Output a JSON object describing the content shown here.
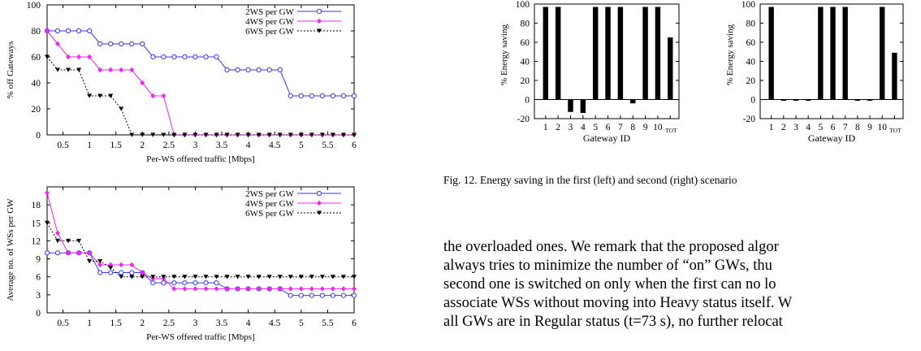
{
  "charts": [
    {
      "type": "line",
      "xlabel": "Per-WS offered traffic [Mbps]",
      "ylabel": "% off Gateways",
      "xlim": [
        0.2,
        6
      ],
      "ylim": [
        0,
        100
      ],
      "xticks": [
        0.5,
        1,
        1.5,
        2,
        2.5,
        3,
        3.5,
        4,
        4.5,
        5,
        5.5,
        6
      ],
      "yticks": [
        0,
        20,
        40,
        60,
        80,
        100
      ],
      "x": [
        0.2,
        0.4,
        0.6,
        0.8,
        1.0,
        1.2,
        1.4,
        1.6,
        1.8,
        2.0,
        2.2,
        2.4,
        2.6,
        2.8,
        3.0,
        3.2,
        3.4,
        3.6,
        3.8,
        4.0,
        4.2,
        4.4,
        4.6,
        4.8,
        5.0,
        5.2,
        5.4,
        5.6,
        5.8,
        6.0
      ],
      "legend": "top-right",
      "series": [
        {
          "name": "2WS per GW",
          "color": "#3a3af0",
          "marker": "circle",
          "dash": "",
          "values": [
            80,
            80,
            80,
            80,
            80,
            70,
            70,
            70,
            70,
            70,
            60,
            60,
            60,
            60,
            60,
            60,
            60,
            50,
            50,
            50,
            50,
            50,
            50,
            30,
            30,
            30,
            30,
            30,
            30,
            30
          ]
        },
        {
          "name": "4WS per GW",
          "color": "#f028f0",
          "marker": "diamond",
          "dash": "",
          "values": [
            80,
            70,
            60,
            60,
            60,
            50,
            50,
            50,
            50,
            40,
            30,
            30,
            0,
            0,
            0,
            0,
            0,
            0,
            0,
            0,
            0,
            0,
            0,
            0,
            0,
            0,
            0,
            0,
            0,
            0
          ]
        },
        {
          "name": "6WS per GW",
          "color": "#000000",
          "marker": "triangle",
          "dash": "2,2",
          "values": [
            60,
            50,
            50,
            50,
            30,
            30,
            30,
            20,
            0,
            0,
            0,
            0,
            0,
            0,
            0,
            0,
            0,
            0,
            0,
            0,
            0,
            0,
            0,
            0,
            0,
            0,
            0,
            0,
            0,
            0
          ]
        }
      ]
    },
    {
      "type": "line",
      "xlabel": "Per-WS offered traffic [Mbps]",
      "ylabel": "Average no. of WSs per GW",
      "xlim": [
        0.2,
        6
      ],
      "ylim": [
        0,
        21
      ],
      "xticks": [
        0.5,
        1,
        1.5,
        2,
        2.5,
        3,
        3.5,
        4,
        4.5,
        5,
        5.5,
        6
      ],
      "yticks": [
        0,
        3,
        6,
        9,
        12,
        15,
        18
      ],
      "x": [
        0.2,
        0.4,
        0.6,
        0.8,
        1.0,
        1.2,
        1.4,
        1.6,
        1.8,
        2.0,
        2.2,
        2.4,
        2.6,
        2.8,
        3.0,
        3.2,
        3.4,
        3.6,
        3.8,
        4.0,
        4.2,
        4.4,
        4.6,
        4.8,
        5.0,
        5.2,
        5.4,
        5.6,
        5.8,
        6.0
      ],
      "legend": "top-right",
      "series": [
        {
          "name": "2WS per GW",
          "color": "#3a3af0",
          "marker": "circle",
          "dash": "",
          "values": [
            10,
            10,
            10,
            10,
            10,
            6.7,
            6.7,
            6.7,
            6.7,
            6.7,
            5,
            5,
            5,
            5,
            5,
            5,
            5,
            4,
            4,
            4,
            4,
            4,
            4,
            2.9,
            2.9,
            2.9,
            2.9,
            2.9,
            2.9,
            2.9
          ]
        },
        {
          "name": "4WS per GW",
          "color": "#f028f0",
          "marker": "diamond",
          "dash": "",
          "values": [
            20,
            13.3,
            10,
            10,
            10,
            8,
            8,
            8,
            8,
            6.7,
            5.7,
            5.7,
            4,
            4,
            4,
            4,
            4,
            4,
            4,
            4,
            4,
            4,
            4,
            4,
            4,
            4,
            4,
            4,
            4,
            4
          ]
        },
        {
          "name": "6WS per GW",
          "color": "#000000",
          "marker": "triangle",
          "dash": "2,2",
          "values": [
            15,
            12,
            12,
            12,
            8.6,
            8.6,
            7.5,
            6,
            6,
            6,
            6,
            6,
            6,
            6,
            6,
            6,
            6,
            6,
            6,
            6,
            6,
            6,
            6,
            6,
            6,
            6,
            6,
            6,
            6,
            6
          ]
        }
      ]
    },
    {
      "type": "bar",
      "xlabel": "Gateway ID",
      "ylabel": "% Energy saving",
      "categories": [
        "1",
        "2",
        "3",
        "4",
        "5",
        "6",
        "7",
        "8",
        "9",
        "10",
        "TOT"
      ],
      "values": [
        97,
        97,
        -13,
        -14,
        97,
        97,
        97,
        -4,
        97,
        97,
        65
      ],
      "ylim": [
        -20,
        100
      ],
      "yticks": [
        -20,
        0,
        20,
        40,
        60,
        80,
        100
      ]
    },
    {
      "type": "bar",
      "xlabel": "Gateway ID",
      "ylabel": "% Energy saving",
      "categories": [
        "1",
        "2",
        "3",
        "4",
        "5",
        "6",
        "7",
        "8",
        "9",
        "10",
        "TOT"
      ],
      "values": [
        97,
        -1,
        -1,
        -1,
        97,
        97,
        97,
        -1,
        -1,
        97,
        49
      ],
      "ylim": [
        -20,
        100
      ],
      "yticks": [
        -20,
        0,
        20,
        40,
        60,
        80,
        100
      ]
    }
  ],
  "caption": "Fig. 12.   Energy saving in the first (left) and second (right) scenario",
  "body_lines": [
    "the overloaded ones. We remark that the proposed algor",
    "always tries to minimize the number of “on” GWs, thu",
    "second one is switched on only when the first can no lo",
    "associate WSs without moving into Heavy status itself. W",
    "all GWs are in Regular status (t=73 s), no further relocat"
  ]
}
